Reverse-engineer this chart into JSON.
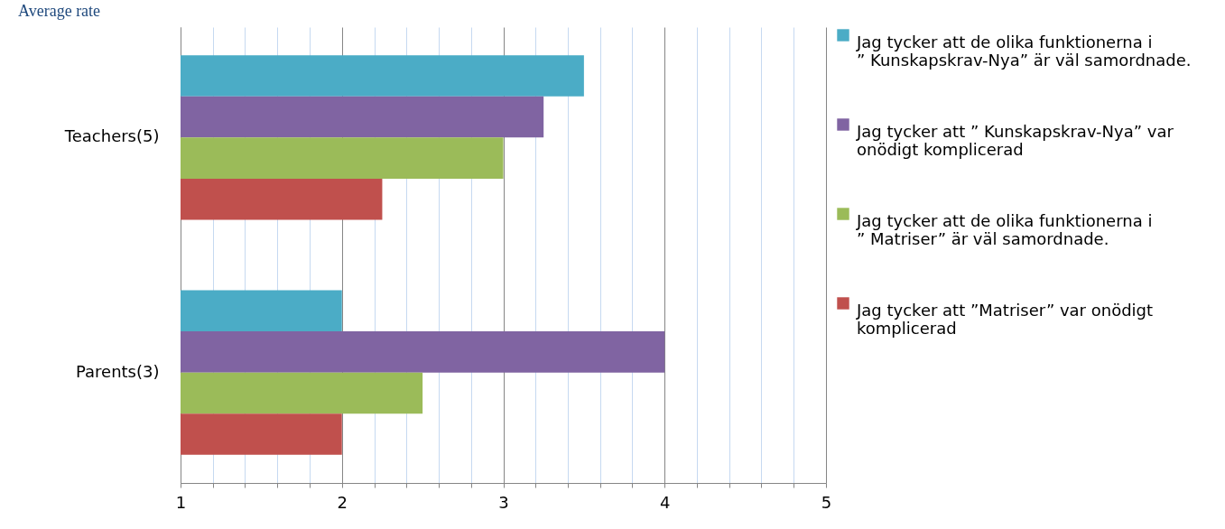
{
  "chart_data": {
    "type": "bar",
    "orientation": "horizontal",
    "title": "Average rate",
    "categories": [
      "Teachers(5)",
      "Parents(3)"
    ],
    "series": [
      {
        "name": "Jag tycker att de olika funktionerna i ” Kunskapskrav-Nya” är väl samordnade.",
        "color": "#4bacc6",
        "values": [
          3.5,
          2
        ]
      },
      {
        "name": "Jag tycker att ” Kunskapskrav-Nya” var onödigt komplicerad",
        "color": "#8064a2",
        "values": [
          3.25,
          4
        ]
      },
      {
        "name": "Jag tycker att de olika funktionerna i ” Matriser” är väl samordnade.",
        "color": "#9bbb59",
        "values": [
          3,
          2.5
        ]
      },
      {
        "name": "Jag tycker att ”Matriser” var onödigt komplicerad",
        "color": "#c0504d",
        "values": [
          2.25,
          2
        ]
      }
    ],
    "xlim": [
      1,
      5
    ],
    "xticks": [
      1,
      {
        "value": 1.2,
        "label": null
      },
      {
        "value": 1.4,
        "label": null
      },
      {
        "value": 1.6,
        "label": null
      },
      {
        "value": 1.8,
        "label": null
      },
      2,
      {
        "value": 2.2,
        "label": null
      },
      {
        "value": 2.4,
        "label": null
      },
      {
        "value": 2.6,
        "label": null
      },
      {
        "value": 2.8,
        "label": null
      },
      3,
      {
        "value": 3.2,
        "label": null
      },
      {
        "value": 3.4,
        "label": null
      },
      {
        "value": 3.6,
        "label": null
      },
      {
        "value": 3.8,
        "label": null
      },
      4,
      {
        "value": 4.2,
        "label": null
      },
      {
        "value": 4.4,
        "label": null
      },
      {
        "value": 4.6,
        "label": null
      },
      {
        "value": 4.8,
        "label": null
      },
      5
    ],
    "grid": "x",
    "legend": "right"
  }
}
